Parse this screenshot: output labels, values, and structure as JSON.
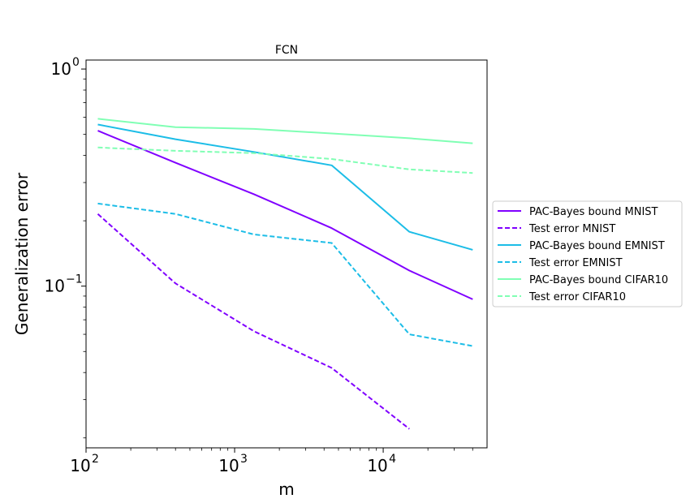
{
  "chart_data": {
    "type": "line",
    "title": "FCN",
    "xlabel": "m",
    "ylabel": "Generalization error",
    "xscale": "log",
    "yscale": "log",
    "xlim": [
      100,
      50000
    ],
    "ylim": [
      0.018,
      1.1
    ],
    "x_ticks": [
      {
        "value": 100,
        "base": "10",
        "exp": "2"
      },
      {
        "value": 1000,
        "base": "10",
        "exp": "3"
      },
      {
        "value": 10000,
        "base": "10",
        "exp": "4"
      }
    ],
    "y_ticks": [
      {
        "value": 0.1,
        "base": "10",
        "exp": "−1"
      },
      {
        "value": 1,
        "base": "10",
        "exp": "0"
      }
    ],
    "grid": false,
    "legend_position": "right, outside plot",
    "series": [
      {
        "name": "PAC-Bayes bound MNIST",
        "color": "#8000ff",
        "dash": "solid",
        "x": [
          120,
          400,
          1350,
          4500,
          15000,
          40000
        ],
        "y": [
          0.52,
          0.37,
          0.265,
          0.185,
          0.118,
          0.087
        ]
      },
      {
        "name": "Test error MNIST",
        "color": "#8000ff",
        "dash": "dashed",
        "x": [
          120,
          400,
          1350,
          4500,
          15000
        ],
        "y": [
          0.215,
          0.103,
          0.062,
          0.042,
          0.022
        ]
      },
      {
        "name": "PAC-Bayes bound EMNIST",
        "color": "#1cbde7",
        "dash": "solid",
        "x": [
          120,
          400,
          1350,
          4500,
          15000,
          40000
        ],
        "y": [
          0.555,
          0.475,
          0.415,
          0.36,
          0.178,
          0.147
        ]
      },
      {
        "name": "Test error EMNIST",
        "color": "#1cbde7",
        "dash": "dashed",
        "x": [
          120,
          400,
          1350,
          4500,
          15000,
          40000
        ],
        "y": [
          0.24,
          0.215,
          0.173,
          0.158,
          0.06,
          0.053
        ]
      },
      {
        "name": "PAC-Bayes bound CIFAR10",
        "color": "#80ffb4",
        "dash": "solid",
        "x": [
          120,
          400,
          1350,
          4500,
          15000,
          40000
        ],
        "y": [
          0.59,
          0.54,
          0.53,
          0.505,
          0.48,
          0.455
        ]
      },
      {
        "name": "Test error CIFAR10",
        "color": "#80ffb4",
        "dash": "dashed",
        "x": [
          120,
          400,
          1350,
          4500,
          15000,
          40000
        ],
        "y": [
          0.435,
          0.42,
          0.41,
          0.385,
          0.345,
          0.332
        ]
      }
    ]
  }
}
